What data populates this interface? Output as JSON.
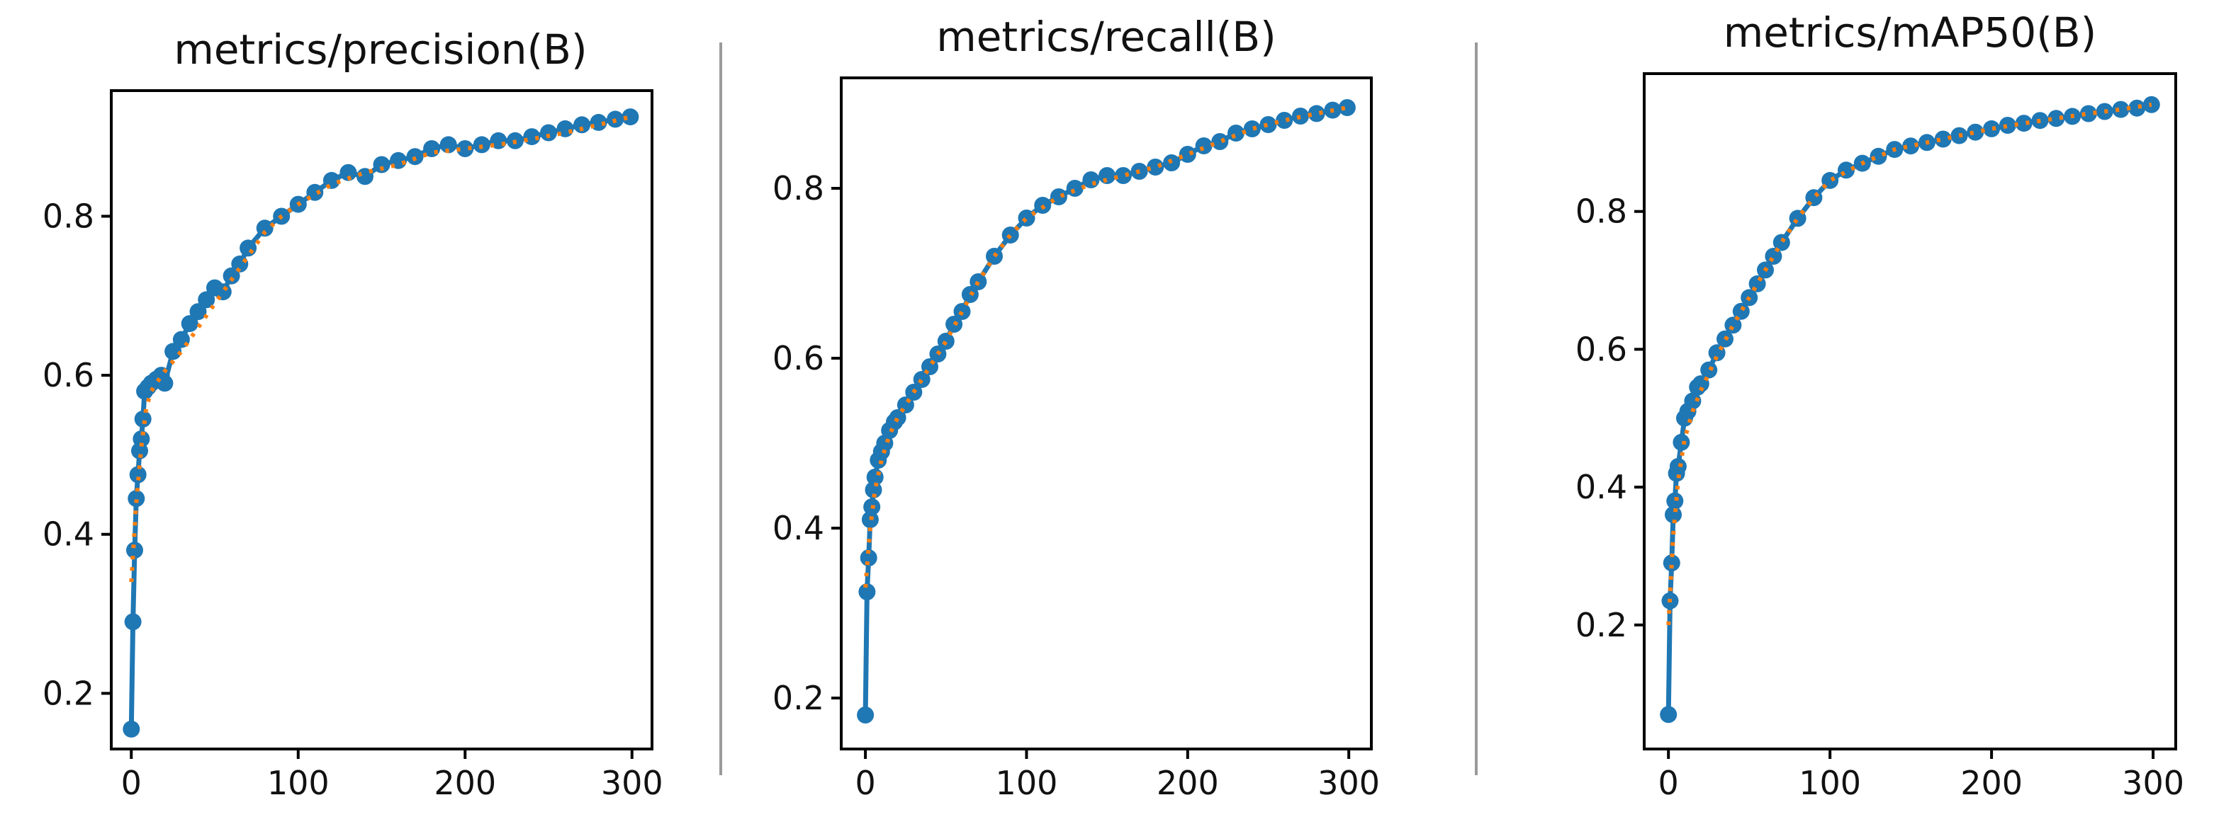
{
  "colors": {
    "series_line": "#1f77b4",
    "series_smooth": "#ff7f0e",
    "axes": "#000000",
    "separator": "#9a9a9a"
  },
  "chart_data": [
    {
      "type": "line",
      "title": "metrics/precision(B)",
      "xlabel": "",
      "ylabel": "",
      "xlim": [
        -12,
        312
      ],
      "ylim": [
        0.13,
        0.958
      ],
      "xticks": [
        0,
        100,
        200,
        300
      ],
      "yticks": [
        0.2,
        0.4,
        0.6,
        0.8
      ],
      "ytick_labels": [
        "0.2",
        "0.4",
        "0.6",
        "0.8"
      ],
      "grid": false,
      "legend": "none",
      "series": [
        {
          "style": "markers+line",
          "x": [
            0,
            1,
            2,
            3,
            4,
            5,
            6,
            7,
            8,
            10,
            12,
            15,
            18,
            20,
            25,
            30,
            35,
            40,
            45,
            50,
            55,
            60,
            65,
            70,
            80,
            90,
            100,
            110,
            120,
            130,
            140,
            150,
            160,
            170,
            180,
            190,
            200,
            210,
            220,
            230,
            240,
            250,
            260,
            270,
            280,
            290,
            299
          ],
          "y": [
            0.155,
            0.29,
            0.38,
            0.445,
            0.475,
            0.505,
            0.52,
            0.545,
            0.58,
            0.585,
            0.59,
            0.595,
            0.6,
            0.59,
            0.63,
            0.645,
            0.665,
            0.68,
            0.695,
            0.71,
            0.705,
            0.725,
            0.74,
            0.76,
            0.785,
            0.8,
            0.815,
            0.83,
            0.845,
            0.855,
            0.85,
            0.865,
            0.87,
            0.875,
            0.885,
            0.89,
            0.885,
            0.89,
            0.895,
            0.895,
            0.9,
            0.905,
            0.91,
            0.915,
            0.918,
            0.922,
            0.925
          ]
        },
        {
          "style": "dotted",
          "x": [
            0,
            3,
            6,
            9,
            12,
            15,
            20,
            30,
            40,
            50,
            60,
            70,
            80,
            90,
            100,
            120,
            140,
            160,
            180,
            200,
            220,
            240,
            260,
            280,
            299
          ],
          "y": [
            0.34,
            0.44,
            0.51,
            0.56,
            0.58,
            0.59,
            0.605,
            0.63,
            0.66,
            0.69,
            0.72,
            0.75,
            0.78,
            0.8,
            0.815,
            0.84,
            0.855,
            0.865,
            0.88,
            0.885,
            0.89,
            0.897,
            0.905,
            0.915,
            0.925
          ]
        }
      ]
    },
    {
      "type": "line",
      "title": "metrics/recall(B)",
      "xlabel": "",
      "ylabel": "",
      "xlim": [
        -15,
        314
      ],
      "ylim": [
        0.14,
        0.93
      ],
      "xticks": [
        0,
        100,
        200,
        300
      ],
      "yticks": [
        0.2,
        0.4,
        0.6,
        0.8
      ],
      "ytick_labels": [
        "0.2",
        "0.4",
        "0.6",
        "0.8"
      ],
      "grid": false,
      "legend": "none",
      "series": [
        {
          "style": "markers+line",
          "x": [
            0,
            1,
            2,
            3,
            4,
            5,
            6,
            8,
            10,
            12,
            15,
            18,
            20,
            25,
            30,
            35,
            40,
            45,
            50,
            55,
            60,
            65,
            70,
            80,
            90,
            100,
            110,
            120,
            130,
            140,
            150,
            160,
            170,
            180,
            190,
            200,
            210,
            220,
            230,
            240,
            250,
            260,
            270,
            280,
            290,
            299
          ],
          "y": [
            0.18,
            0.325,
            0.365,
            0.41,
            0.425,
            0.445,
            0.46,
            0.48,
            0.49,
            0.5,
            0.515,
            0.525,
            0.53,
            0.545,
            0.56,
            0.575,
            0.59,
            0.605,
            0.62,
            0.64,
            0.655,
            0.675,
            0.69,
            0.72,
            0.745,
            0.765,
            0.78,
            0.79,
            0.8,
            0.81,
            0.815,
            0.815,
            0.82,
            0.825,
            0.83,
            0.84,
            0.85,
            0.855,
            0.865,
            0.87,
            0.875,
            0.88,
            0.885,
            0.888,
            0.892,
            0.895
          ]
        },
        {
          "style": "dotted",
          "x": [
            0,
            3,
            6,
            10,
            15,
            20,
            30,
            40,
            50,
            60,
            70,
            80,
            90,
            100,
            120,
            140,
            160,
            180,
            200,
            220,
            240,
            260,
            280,
            299
          ],
          "y": [
            0.33,
            0.4,
            0.445,
            0.48,
            0.51,
            0.53,
            0.56,
            0.59,
            0.62,
            0.655,
            0.69,
            0.72,
            0.745,
            0.765,
            0.79,
            0.805,
            0.815,
            0.825,
            0.84,
            0.855,
            0.87,
            0.88,
            0.888,
            0.895
          ]
        }
      ]
    },
    {
      "type": "line",
      "title": "metrics/mAP50(B)",
      "xlabel": "",
      "ylabel": "",
      "xlim": [
        -15,
        314
      ],
      "ylim": [
        0.02,
        1.0
      ],
      "xticks": [
        0,
        100,
        200,
        300
      ],
      "yticks": [
        0.2,
        0.4,
        0.6,
        0.8
      ],
      "ytick_labels": [
        "0.2",
        "0.4",
        "0.6",
        "0.8"
      ],
      "grid": false,
      "legend": "none",
      "series": [
        {
          "style": "markers+line",
          "x": [
            0,
            1,
            2,
            3,
            4,
            5,
            6,
            8,
            10,
            12,
            15,
            18,
            20,
            25,
            30,
            35,
            40,
            45,
            50,
            55,
            60,
            65,
            70,
            80,
            90,
            100,
            110,
            120,
            130,
            140,
            150,
            160,
            170,
            180,
            190,
            200,
            210,
            220,
            230,
            240,
            250,
            260,
            270,
            280,
            290,
            299
          ],
          "y": [
            0.07,
            0.235,
            0.29,
            0.36,
            0.38,
            0.42,
            0.43,
            0.465,
            0.5,
            0.51,
            0.525,
            0.545,
            0.55,
            0.57,
            0.595,
            0.615,
            0.635,
            0.655,
            0.675,
            0.695,
            0.715,
            0.735,
            0.755,
            0.79,
            0.82,
            0.845,
            0.86,
            0.87,
            0.88,
            0.89,
            0.895,
            0.9,
            0.905,
            0.91,
            0.915,
            0.92,
            0.925,
            0.928,
            0.932,
            0.935,
            0.938,
            0.942,
            0.945,
            0.948,
            0.95,
            0.955
          ]
        },
        {
          "style": "dotted",
          "x": [
            0,
            3,
            6,
            10,
            15,
            20,
            30,
            40,
            50,
            60,
            70,
            80,
            90,
            100,
            120,
            140,
            160,
            180,
            200,
            220,
            240,
            260,
            280,
            299
          ],
          "y": [
            0.2,
            0.33,
            0.41,
            0.47,
            0.51,
            0.54,
            0.59,
            0.635,
            0.675,
            0.715,
            0.755,
            0.79,
            0.82,
            0.845,
            0.87,
            0.89,
            0.9,
            0.91,
            0.92,
            0.928,
            0.935,
            0.942,
            0.948,
            0.955
          ]
        }
      ]
    }
  ]
}
